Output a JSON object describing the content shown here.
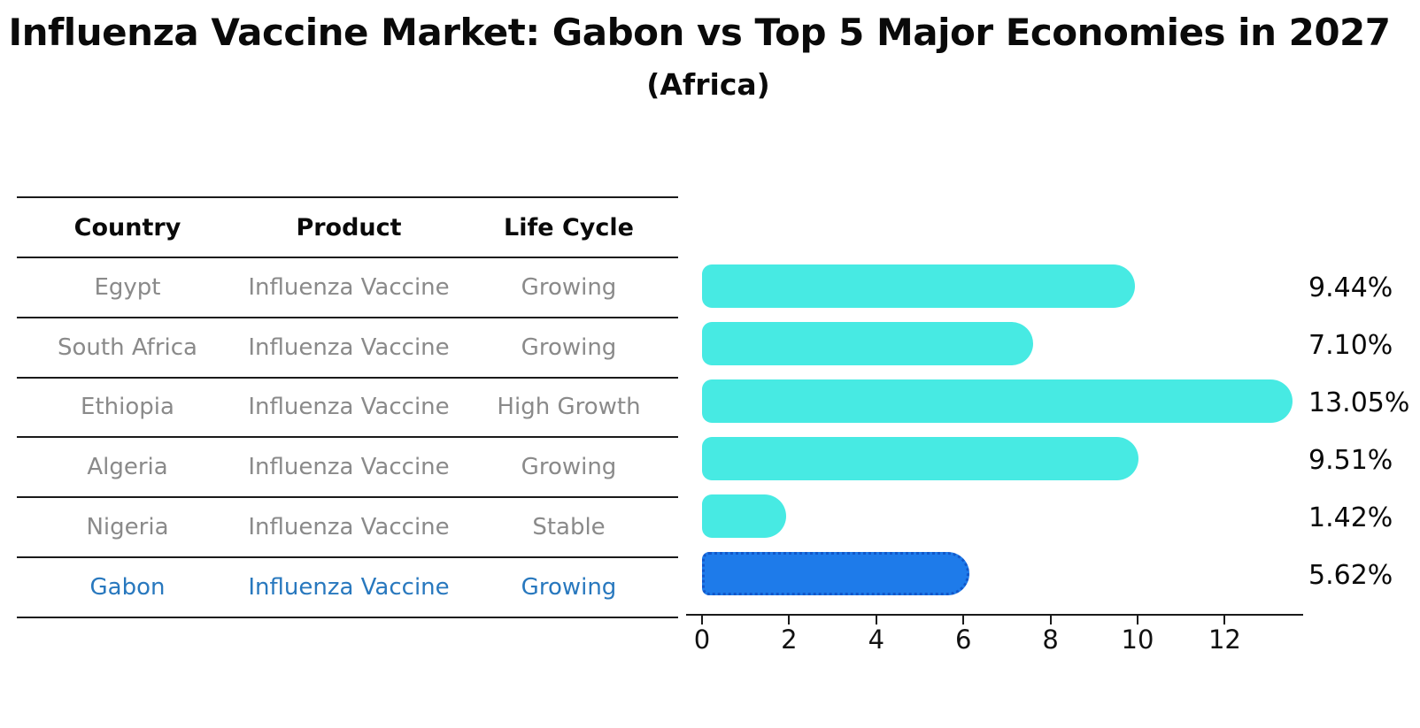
{
  "header": {
    "title": "Influenza Vaccine Market: Gabon vs Top 5 Major Economies in 2027",
    "subtitle": "(Africa)"
  },
  "table": {
    "headers": [
      "Country",
      "Product",
      "Life Cycle"
    ],
    "rows": [
      {
        "country": "Egypt",
        "product": "Influenza Vaccine",
        "life_cycle": "Growing",
        "highlight": false
      },
      {
        "country": "South Africa",
        "product": "Influenza Vaccine",
        "life_cycle": "Growing",
        "highlight": false
      },
      {
        "country": "Ethiopia",
        "product": "Influenza Vaccine",
        "life_cycle": "High Growth",
        "highlight": false
      },
      {
        "country": "Algeria",
        "product": "Influenza Vaccine",
        "life_cycle": "Growing",
        "highlight": false
      },
      {
        "country": "Nigeria",
        "product": "Influenza Vaccine",
        "life_cycle": "Stable",
        "highlight": false
      },
      {
        "country": "Gabon",
        "product": "Influenza Vaccine",
        "life_cycle": "Growing",
        "highlight": true
      }
    ]
  },
  "chart_data": {
    "type": "bar",
    "orientation": "horizontal",
    "title": "Influenza Vaccine Market: Gabon vs Top 5 Major Economies in 2027 (Africa)",
    "categories": [
      "Egypt",
      "South Africa",
      "Ethiopia",
      "Algeria",
      "Nigeria",
      "Gabon"
    ],
    "values": [
      9.44,
      7.1,
      13.05,
      9.51,
      1.42,
      5.62
    ],
    "value_labels": [
      "9.44%",
      "7.10%",
      "13.05%",
      "9.51%",
      "1.42%",
      "5.62%"
    ],
    "x_ticks": [
      0,
      2,
      4,
      6,
      8,
      10,
      12
    ],
    "xlim": [
      0,
      13.6
    ],
    "grid": false,
    "legend": false,
    "bar_color": "#47eae3",
    "highlight_bar_color": "#1e7bea",
    "highlight_border_color": "#1257c9",
    "highlight_text_color": "#2878be",
    "highlight_index": 5,
    "highlight_category": "Gabon"
  }
}
